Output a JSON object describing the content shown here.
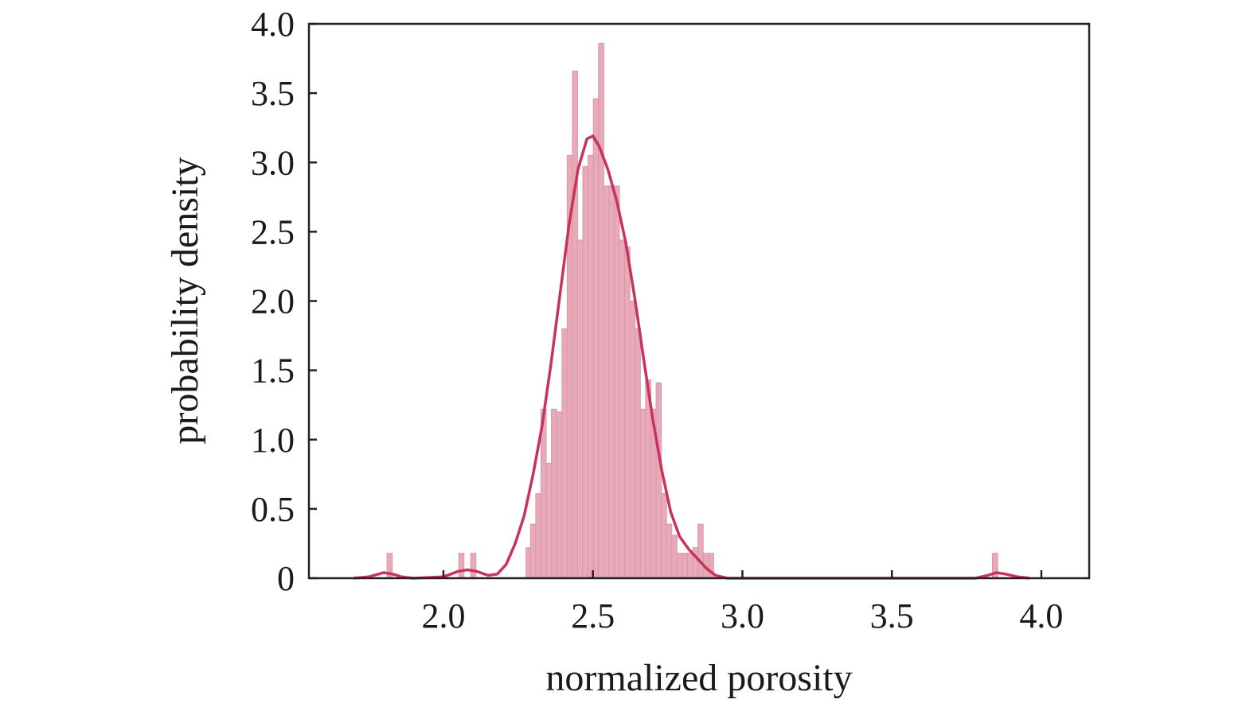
{
  "chart_data": {
    "type": "bar",
    "xlabel": "normalized porosity",
    "ylabel": "probability density",
    "xlim": [
      1.55,
      4.16
    ],
    "ylim": [
      0,
      4.0
    ],
    "xticks": [
      {
        "value": 2.0,
        "label": "2.0"
      },
      {
        "value": 2.5,
        "label": "2.5"
      },
      {
        "value": 3.0,
        "label": "3.0"
      },
      {
        "value": 3.5,
        "label": "3.5"
      },
      {
        "value": 4.0,
        "label": "4.0"
      }
    ],
    "yticks": [
      {
        "value": 0,
        "label": "0"
      },
      {
        "value": 0.5,
        "label": "0.5"
      },
      {
        "value": 1.0,
        "label": "1.0"
      },
      {
        "value": 1.5,
        "label": "1.5"
      },
      {
        "value": 2.0,
        "label": "2.0"
      },
      {
        "value": 2.5,
        "label": "2.5"
      },
      {
        "value": 3.0,
        "label": "3.0"
      },
      {
        "value": 3.5,
        "label": "3.5"
      },
      {
        "value": 4.0,
        "label": "4.0"
      }
    ],
    "grid": false,
    "histogram": {
      "bin_width": 0.0175,
      "color": "#e8aab8",
      "edge_color": "#d898aa",
      "bins": [
        [
          1.82,
          0.18
        ],
        [
          2.06,
          0.18
        ],
        [
          2.1,
          0.18
        ],
        [
          2.285,
          0.22
        ],
        [
          2.3,
          0.39
        ],
        [
          2.3175,
          0.61
        ],
        [
          2.335,
          1.22
        ],
        [
          2.3525,
          0.83
        ],
        [
          2.37,
          1.22
        ],
        [
          2.3875,
          1.2
        ],
        [
          2.405,
          1.8
        ],
        [
          2.4225,
          3.05
        ],
        [
          2.44,
          3.66
        ],
        [
          2.4575,
          2.44
        ],
        [
          2.475,
          2.97
        ],
        [
          2.4925,
          3.05
        ],
        [
          2.51,
          3.46
        ],
        [
          2.5275,
          3.86
        ],
        [
          2.545,
          2.83
        ],
        [
          2.5625,
          2.83
        ],
        [
          2.58,
          2.83
        ],
        [
          2.5975,
          2.44
        ],
        [
          2.615,
          2.39
        ],
        [
          2.6325,
          2.0
        ],
        [
          2.65,
          1.8
        ],
        [
          2.6675,
          1.22
        ],
        [
          2.685,
          1.43
        ],
        [
          2.7025,
          1.22
        ],
        [
          2.72,
          1.41
        ],
        [
          2.7375,
          0.61
        ],
        [
          2.755,
          0.39
        ],
        [
          2.7725,
          0.31
        ],
        [
          2.79,
          0.18
        ],
        [
          2.8075,
          0.18
        ],
        [
          2.825,
          0.18
        ],
        [
          2.8425,
          0.22
        ],
        [
          2.86,
          0.39
        ],
        [
          2.8775,
          0.18
        ],
        [
          2.895,
          0.18
        ],
        [
          3.845,
          0.18
        ]
      ]
    },
    "kde": {
      "name": "",
      "color": "#c8335c",
      "points": [
        [
          1.7,
          0.0
        ],
        [
          1.75,
          0.01
        ],
        [
          1.8,
          0.04
        ],
        [
          1.83,
          0.03
        ],
        [
          1.86,
          0.01
        ],
        [
          1.9,
          0.0
        ],
        [
          2.0,
          0.01
        ],
        [
          2.05,
          0.05
        ],
        [
          2.08,
          0.06
        ],
        [
          2.11,
          0.05
        ],
        [
          2.15,
          0.02
        ],
        [
          2.18,
          0.03
        ],
        [
          2.21,
          0.1
        ],
        [
          2.24,
          0.25
        ],
        [
          2.27,
          0.45
        ],
        [
          2.3,
          0.75
        ],
        [
          2.33,
          1.1
        ],
        [
          2.36,
          1.55
        ],
        [
          2.39,
          2.05
        ],
        [
          2.42,
          2.55
        ],
        [
          2.45,
          2.95
        ],
        [
          2.48,
          3.17
        ],
        [
          2.5,
          3.19
        ],
        [
          2.52,
          3.12
        ],
        [
          2.55,
          2.95
        ],
        [
          2.58,
          2.72
        ],
        [
          2.61,
          2.42
        ],
        [
          2.64,
          2.02
        ],
        [
          2.67,
          1.58
        ],
        [
          2.7,
          1.15
        ],
        [
          2.73,
          0.78
        ],
        [
          2.76,
          0.48
        ],
        [
          2.79,
          0.3
        ],
        [
          2.82,
          0.21
        ],
        [
          2.85,
          0.14
        ],
        [
          2.88,
          0.07
        ],
        [
          2.91,
          0.02
        ],
        [
          2.95,
          0.0
        ],
        [
          3.1,
          0.0
        ],
        [
          3.5,
          0.0
        ],
        [
          3.78,
          0.0
        ],
        [
          3.82,
          0.02
        ],
        [
          3.85,
          0.04
        ],
        [
          3.88,
          0.03
        ],
        [
          3.92,
          0.01
        ],
        [
          3.96,
          0.0
        ]
      ]
    }
  }
}
